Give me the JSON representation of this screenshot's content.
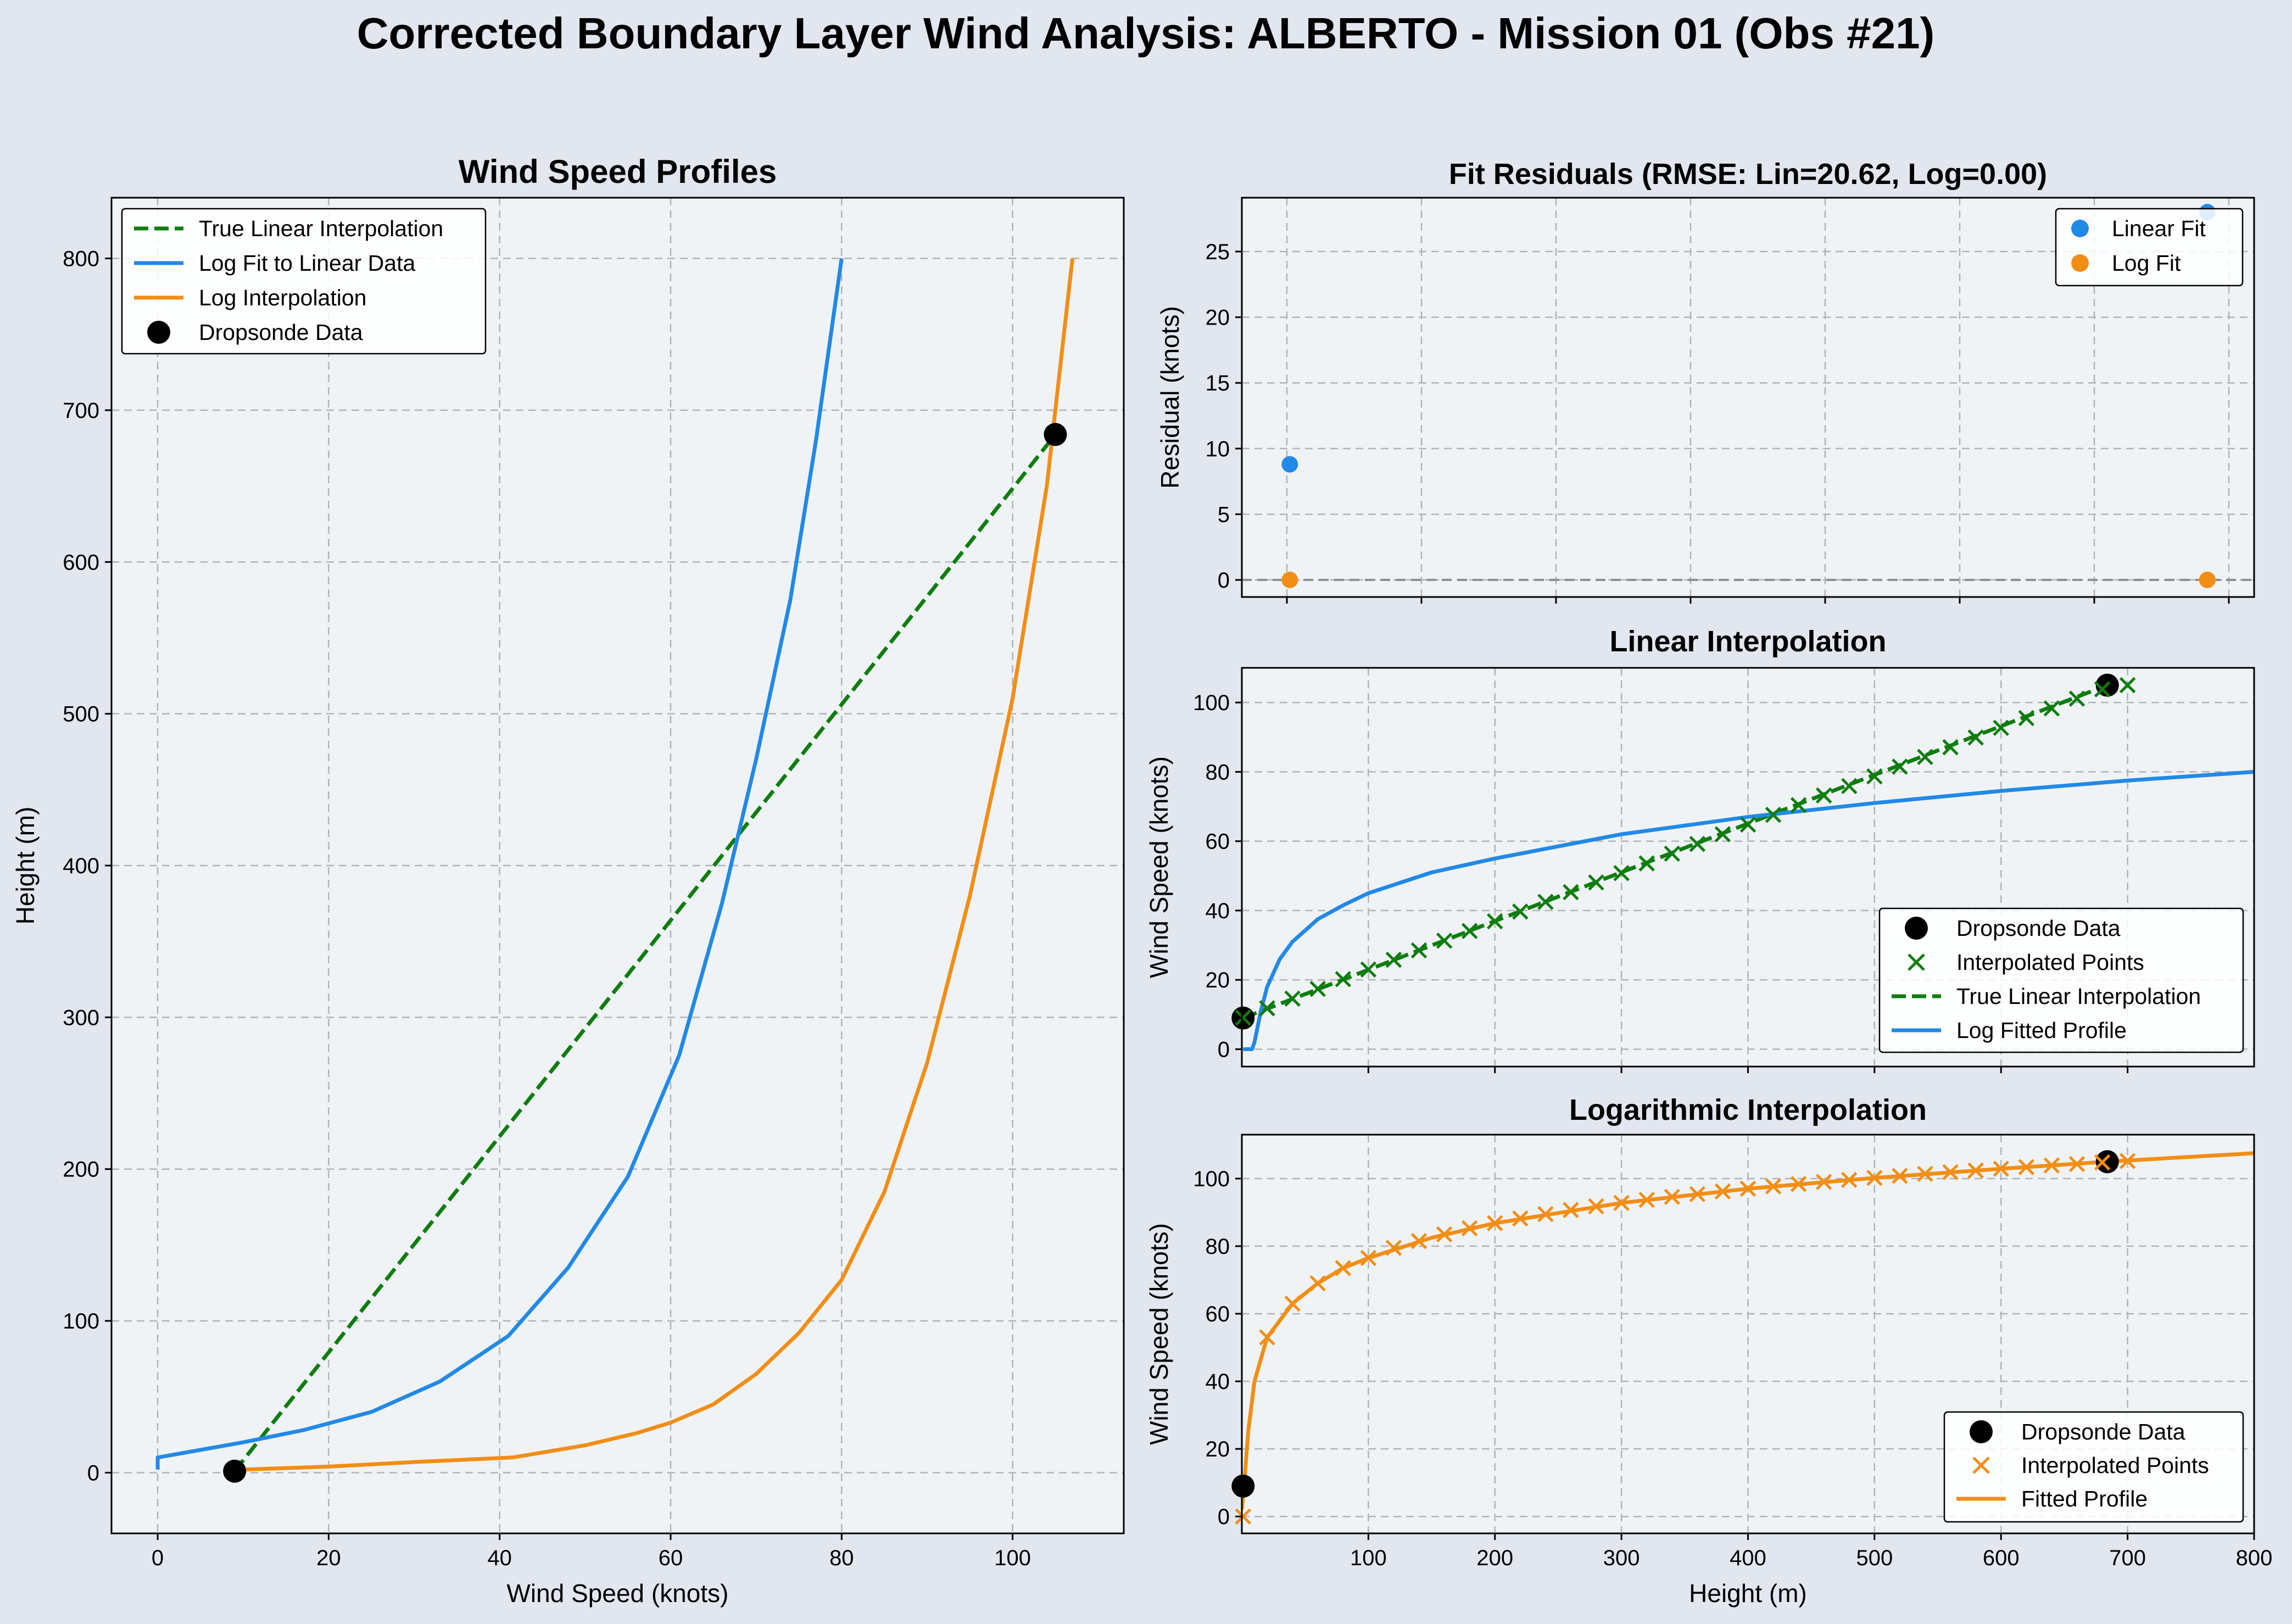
{
  "figure": {
    "title": "Corrected Boundary Layer Wind Analysis: ALBERTO - Mission 01 (Obs #21)",
    "colors": {
      "background": "#e2e6ee",
      "axes": "#eff3f6",
      "green": "#0e7d0e",
      "blue": "#2289e6",
      "orange": "#f28e16",
      "black": "#000000"
    }
  },
  "chart_data": [
    {
      "id": "profiles",
      "type": "line",
      "title": "Wind Speed Profiles",
      "xlabel": "Wind Speed (knots)",
      "ylabel": "Height (m)",
      "xlim": [
        -5.4,
        113
      ],
      "ylim": [
        -40,
        840
      ],
      "xticks": [
        0,
        20,
        40,
        60,
        80,
        100
      ],
      "yticks": [
        0,
        100,
        200,
        300,
        400,
        500,
        600,
        700,
        800
      ],
      "grid": true,
      "legend": "top-left",
      "series": [
        {
          "name": "True Linear Interpolation",
          "style": "dashed",
          "color": "#0e7d0e",
          "x": [
            9,
            105
          ],
          "y": [
            1,
            684
          ]
        },
        {
          "name": "Log Fit to Linear Data",
          "style": "solid",
          "color": "#2289e6",
          "x": [
            0,
            0,
            5,
            10,
            17,
            25,
            33,
            41,
            48,
            55,
            61,
            66,
            70,
            74,
            77,
            80
          ],
          "y": [
            2,
            10,
            15,
            20,
            28,
            40,
            60,
            90,
            135,
            195,
            275,
            375,
            470,
            575,
            680,
            800
          ]
        },
        {
          "name": "Log Interpolation",
          "style": "solid",
          "color": "#f28e16",
          "x": [
            10,
            20,
            30,
            41.5,
            50,
            56,
            60,
            65,
            70,
            75,
            80,
            85,
            90,
            95,
            100,
            104,
            107
          ],
          "y": [
            2,
            4,
            7,
            10,
            18,
            26,
            33,
            45,
            65,
            92,
            127,
            185,
            270,
            380,
            510,
            650,
            800
          ]
        },
        {
          "name": "Dropsonde Data",
          "style": "markers",
          "color": "#000000",
          "x": [
            9,
            105
          ],
          "y": [
            1,
            684
          ]
        }
      ]
    },
    {
      "id": "residuals",
      "type": "scatter",
      "title": "Fit Residuals (RMSE: Lin=20.62, Log=0.00)",
      "xlabel": "",
      "ylabel": "Residual (knots)",
      "xlim": [
        -34.7,
        718.8
      ],
      "ylim": [
        -1.3,
        29.1
      ],
      "yticks": [
        0,
        5,
        10,
        15,
        20,
        25
      ],
      "grid": true,
      "legend": "top-right",
      "series": [
        {
          "name": "Linear Fit",
          "color": "#2289e6",
          "x": [
            1,
            684
          ],
          "y": [
            8.8,
            28
          ]
        },
        {
          "name": "Log Fit",
          "color": "#f28e16",
          "x": [
            1,
            684
          ],
          "y": [
            0,
            0
          ]
        }
      ]
    },
    {
      "id": "linear",
      "type": "line",
      "title": "Linear Interpolation",
      "xlabel": "",
      "ylabel": "Wind Speed (knots)",
      "xlim": [
        0,
        800
      ],
      "ylim": [
        -5,
        110
      ],
      "yticks": [
        0,
        20,
        40,
        60,
        80,
        100
      ],
      "grid": true,
      "legend": "bottom-right",
      "series": [
        {
          "name": "Dropsonde Data",
          "style": "markers",
          "color": "#000000",
          "x": [
            1,
            684
          ],
          "y": [
            9,
            105
          ]
        },
        {
          "name": "Interpolated Points",
          "style": "x-markers",
          "color": "#0e7d0e",
          "x": [
            1,
            20,
            40,
            60,
            80,
            100,
            120,
            140,
            160,
            180,
            200,
            220,
            240,
            260,
            280,
            300,
            320,
            340,
            360,
            380,
            400,
            420,
            440,
            460,
            480,
            500,
            520,
            540,
            560,
            580,
            600,
            620,
            640,
            660,
            680,
            700
          ],
          "y": [
            9.1,
            11.8,
            14.6,
            17.4,
            20.2,
            23.0,
            25.8,
            28.5,
            31.3,
            34.1,
            36.9,
            39.7,
            42.5,
            45.3,
            48.1,
            50.8,
            53.6,
            56.4,
            59.2,
            62.0,
            64.8,
            67.6,
            70.4,
            73.2,
            75.9,
            78.7,
            81.5,
            84.3,
            87.1,
            89.9,
            92.7,
            95.5,
            98.3,
            101.1,
            103.8,
            105.0
          ]
        },
        {
          "name": "True Linear Interpolation",
          "style": "dashed",
          "color": "#0e7d0e",
          "x": [
            1,
            684
          ],
          "y": [
            9,
            105
          ]
        },
        {
          "name": "Log Fitted Profile",
          "style": "solid",
          "color": "#2289e6",
          "x": [
            1,
            8,
            10,
            15,
            20,
            30,
            40,
            60,
            80,
            100,
            150,
            200,
            300,
            400,
            500,
            600,
            700,
            800
          ],
          "y": [
            0,
            0,
            2,
            11,
            18,
            26,
            31,
            37.5,
            41.5,
            45,
            51,
            55,
            62,
            67,
            71,
            74.5,
            77.5,
            80
          ]
        }
      ]
    },
    {
      "id": "logarithmic",
      "type": "line",
      "title": "Logarithmic Interpolation",
      "xlabel": "Height (m)",
      "ylabel": "Wind Speed (knots)",
      "xlim": [
        0,
        800
      ],
      "ylim": [
        -5,
        113
      ],
      "xticks": [
        100,
        200,
        300,
        400,
        500,
        600,
        700,
        800
      ],
      "yticks": [
        0,
        20,
        40,
        60,
        80,
        100
      ],
      "grid": true,
      "legend": "bottom-right",
      "series": [
        {
          "name": "Dropsonde Data",
          "style": "markers",
          "color": "#000000",
          "x": [
            1,
            684
          ],
          "y": [
            9,
            105
          ]
        },
        {
          "name": "Interpolated Points",
          "style": "x-markers",
          "color": "#f28e16",
          "x": [
            1,
            20,
            40,
            60,
            80,
            100,
            120,
            140,
            160,
            180,
            200,
            220,
            240,
            260,
            280,
            300,
            320,
            340,
            360,
            380,
            400,
            420,
            440,
            460,
            480,
            500,
            520,
            540,
            560,
            580,
            600,
            620,
            640,
            660,
            680,
            700
          ],
          "y": [
            0,
            53,
            63,
            69,
            73.5,
            76.5,
            79.5,
            81.5,
            83.5,
            85.3,
            86.8,
            88.2,
            89.5,
            90.7,
            91.8,
            92.8,
            93.7,
            94.6,
            95.4,
            96.2,
            97,
            97.7,
            98.4,
            99,
            99.6,
            100.2,
            100.8,
            101.4,
            101.9,
            102.4,
            102.9,
            103.4,
            103.9,
            104.3,
            104.8,
            105.2
          ]
        },
        {
          "name": "Fitted Profile",
          "style": "solid",
          "color": "#f28e16",
          "x": [
            0,
            2,
            5,
            10,
            20,
            40,
            60,
            80,
            100,
            150,
            200,
            300,
            400,
            500,
            600,
            684,
            800
          ],
          "y": [
            2,
            10,
            25,
            40,
            53,
            63,
            69,
            73.5,
            76.5,
            82.5,
            86.8,
            92.8,
            97,
            100.2,
            102.9,
            105,
            107.5
          ]
        }
      ]
    }
  ]
}
